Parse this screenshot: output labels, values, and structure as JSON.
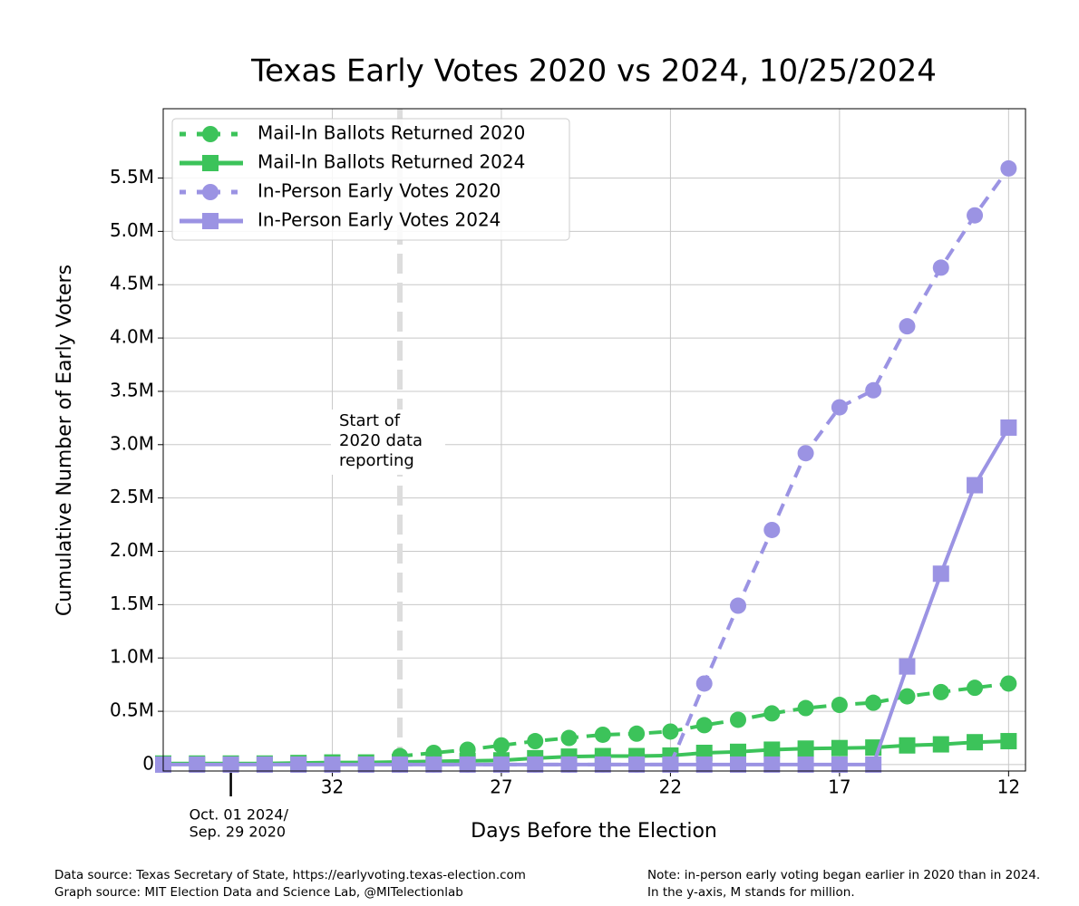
{
  "chart_data": {
    "type": "line",
    "title": "Texas Early Votes 2020 vs 2024, 10/25/2024",
    "x_label": "Days Before the Election",
    "y_label": "Cumulative Number of Early Voters",
    "x": [
      37,
      36,
      35,
      34,
      33,
      32,
      31,
      30,
      29,
      28,
      27,
      26,
      25,
      24,
      23,
      22,
      21,
      20,
      19,
      18,
      17,
      16,
      15,
      14,
      13,
      12
    ],
    "series": [
      {
        "name": "Mail-In Ballots Returned 2020",
        "color": "#3cc35a",
        "dash": true,
        "marker": "circle",
        "values": [
          null,
          null,
          null,
          null,
          null,
          null,
          null,
          0.08,
          0.11,
          0.14,
          0.18,
          0.22,
          0.25,
          0.28,
          0.29,
          0.31,
          0.37,
          0.42,
          0.48,
          0.53,
          0.56,
          0.58,
          0.64,
          0.68,
          0.72,
          0.76
        ]
      },
      {
        "name": "Mail-In Ballots Returned 2024",
        "color": "#3cc35a",
        "dash": false,
        "marker": "square",
        "values": [
          0.01,
          0.01,
          0.01,
          0.01,
          0.015,
          0.02,
          0.02,
          0.025,
          0.03,
          0.035,
          0.04,
          0.06,
          0.075,
          0.08,
          0.08,
          0.085,
          0.11,
          0.12,
          0.14,
          0.15,
          0.155,
          0.16,
          0.18,
          0.19,
          0.21,
          0.22
        ]
      },
      {
        "name": "In-Person Early Votes 2020",
        "color": "#9b93e3",
        "dash": true,
        "marker": "circle",
        "values": [
          null,
          null,
          null,
          null,
          null,
          null,
          null,
          0,
          0,
          0,
          0,
          0,
          0,
          0,
          0,
          0,
          0.76,
          1.49,
          2.2,
          2.92,
          3.35,
          3.51,
          4.11,
          4.66,
          5.15,
          5.59
        ]
      },
      {
        "name": "In-Person Early Votes 2024",
        "color": "#9b93e3",
        "dash": false,
        "marker": "square",
        "values": [
          0,
          0,
          0,
          0,
          0,
          0,
          0,
          0,
          0,
          0,
          0,
          0,
          0,
          0,
          0,
          0,
          0,
          0,
          0,
          0,
          0,
          0,
          0.92,
          1.79,
          2.62,
          3.16
        ]
      }
    ],
    "xlim": [
      37,
      11.5
    ],
    "xticks": [
      32,
      27,
      22,
      17,
      12
    ],
    "ylim": [
      -0.06,
      6.15
    ],
    "yticks": [
      0,
      {
        "value": 0.5,
        "label": "0.5M"
      },
      {
        "value": 1,
        "label": "1.0M"
      },
      {
        "value": 1.5,
        "label": "1.5M"
      },
      {
        "value": 2,
        "label": "2.0M"
      },
      {
        "value": 2.5,
        "label": "2.5M"
      },
      {
        "value": 3,
        "label": "3.0M"
      },
      {
        "value": 3.5,
        "label": "3.5M"
      },
      {
        "value": 4,
        "label": "4.0M"
      },
      {
        "value": 4.5,
        "label": "4.5M"
      },
      {
        "value": 5,
        "label": "5.0M"
      },
      {
        "value": 5.5,
        "label": "5.5M"
      }
    ],
    "grid": true,
    "legend": "upper left",
    "date_marker": {
      "value": 35,
      "lines": [
        "Oct. 01 2024/",
        "Sep. 29 2020"
      ]
    },
    "reference_line": {
      "value": 30,
      "color": "#dddddd",
      "lines": [
        "Start of",
        "2020 data",
        "reporting"
      ]
    },
    "footnotes_left": [
      "Data source: Texas Secretary of State, https://earlyvoting.texas-election.com",
      "Graph source: MIT Election Data and Science Lab, @MITelectionlab"
    ],
    "footnotes_right": [
      "Note: in-person early voting began earlier in 2020 than in 2024.",
      "In the y-axis, M stands for million."
    ]
  }
}
